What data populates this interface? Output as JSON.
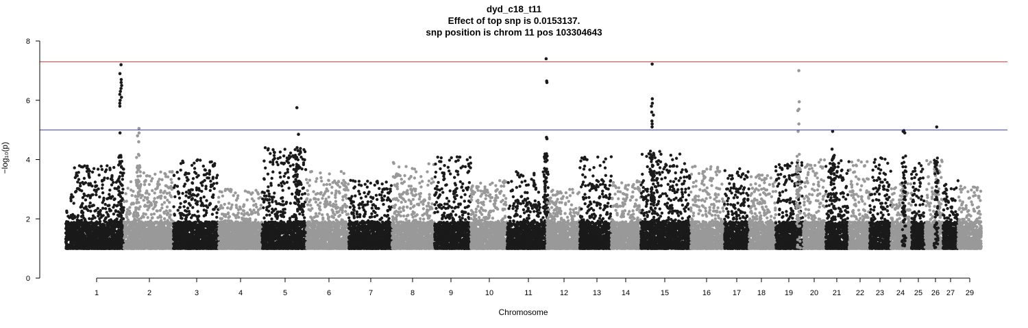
{
  "chart_data": {
    "type": "scatter",
    "subtype": "manhattan",
    "title": "dyd_c18_t11",
    "subtitle_lines": [
      "Effect of top snp is 0.0153137.",
      "snp position is chrom 11 pos 103304643"
    ],
    "xlabel": "Chromosome",
    "ylabel": "−log₁₀(p)",
    "ylim": [
      0,
      8
    ],
    "y_ticks": [
      0,
      2,
      4,
      6,
      8
    ],
    "chromosome_labels": [
      "1",
      "2",
      "3",
      "4",
      "5",
      "6",
      "7",
      "8",
      "9",
      "10",
      "11",
      "12",
      "13",
      "14",
      "15",
      "16",
      "17",
      "18",
      "19",
      "20",
      "21",
      "22",
      "23",
      "24",
      "25",
      "26",
      "27",
      "29"
    ],
    "chromosome_colors": [
      "#1a1a1a",
      "#999999"
    ],
    "thresholds": [
      {
        "value": 7.3,
        "color": "#dd3333"
      },
      {
        "value": 5.0,
        "color": "#3333aa"
      }
    ],
    "peaks": [
      {
        "chrom": "1",
        "top_values": [
          7.2,
          6.9,
          6.7,
          6.6,
          6.5,
          6.4,
          6.3,
          6.2,
          6.1,
          6.0,
          5.9,
          5.8,
          4.9
        ]
      },
      {
        "chrom": "2",
        "top_values": [
          5.05,
          4.9,
          4.8,
          4.6
        ]
      },
      {
        "chrom": "5",
        "top_values": [
          5.75,
          4.85,
          4.4,
          4.3
        ]
      },
      {
        "chrom": "11",
        "top_values": [
          7.4,
          6.65,
          6.6,
          4.75,
          4.7
        ]
      },
      {
        "chrom": "15",
        "top_values": [
          7.22,
          6.05,
          5.9,
          5.8,
          5.6,
          5.5,
          5.3,
          5.2,
          5.1
        ]
      },
      {
        "chrom": "20",
        "top_values": [
          7.0,
          5.95,
          5.7,
          5.65,
          5.2,
          4.95
        ]
      },
      {
        "chrom": "21",
        "top_values": [
          4.95,
          4.35
        ]
      },
      {
        "chrom": "25",
        "top_values": [
          4.98,
          4.95,
          4.9
        ]
      },
      {
        "chrom": "27",
        "top_values": [
          5.1
        ]
      }
    ]
  }
}
